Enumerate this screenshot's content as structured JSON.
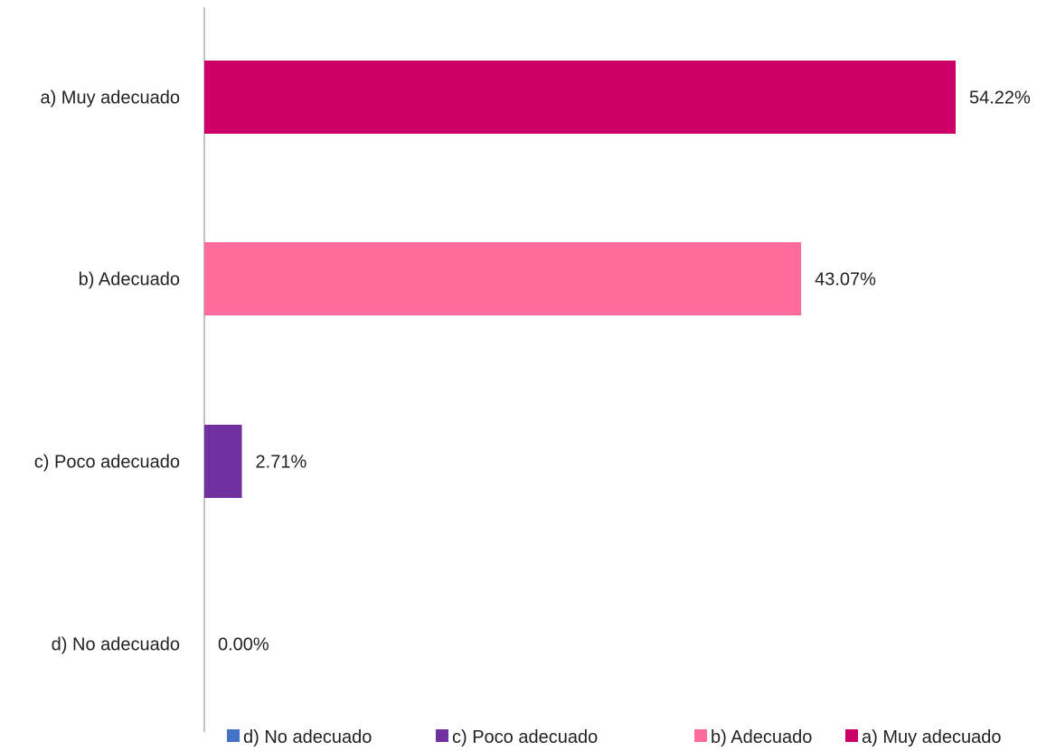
{
  "chart_data": {
    "type": "bar",
    "orientation": "horizontal",
    "categories": [
      "a) Muy adecuado",
      "b) Adecuado",
      "c) Poco adecuado",
      "d) No adecuado"
    ],
    "values": [
      54.22,
      43.07,
      2.71,
      0.0
    ],
    "value_labels": [
      "54.22%",
      "43.07%",
      "2.71%",
      "0.00%"
    ],
    "colors": [
      "#cc0066",
      "#ff6b9a",
      "#7030a0",
      "#4472c4"
    ],
    "xlim": [
      0,
      60
    ],
    "grid": false,
    "legend_position": "bottom",
    "legend": [
      {
        "label": "d) No adecuado",
        "color": "#4472c4"
      },
      {
        "label": "c) Poco adecuado",
        "color": "#7030a0"
      },
      {
        "label": "b) Adecuado",
        "color": "#ff6b9a"
      },
      {
        "label": "a) Muy adecuado",
        "color": "#cc0066"
      }
    ]
  }
}
